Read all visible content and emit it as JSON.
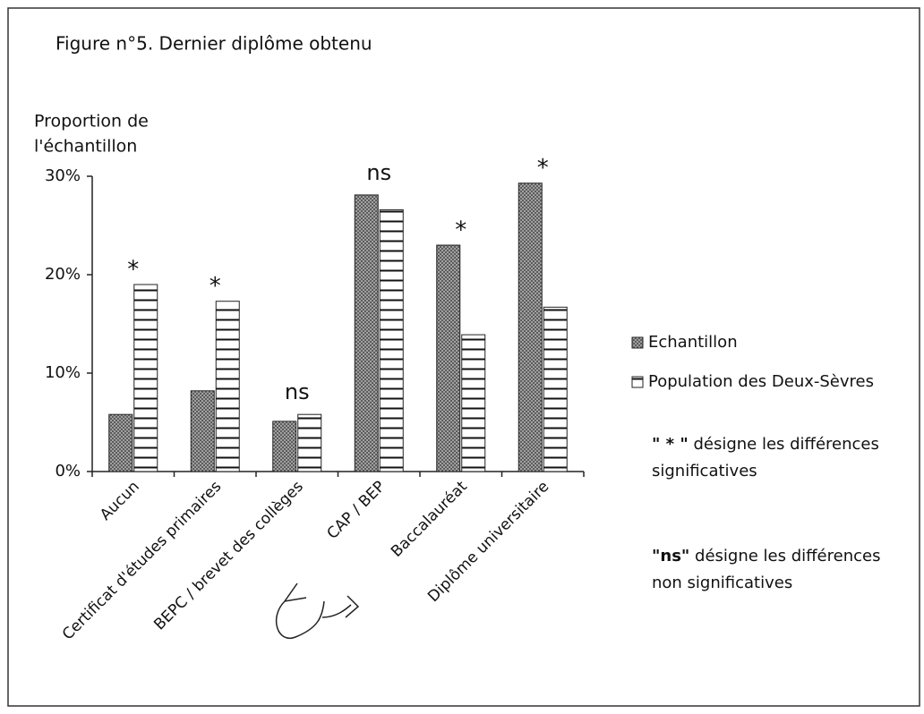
{
  "chart_data": {
    "type": "bar",
    "title": "Figure  n°5. Dernier diplôme obtenu",
    "y_label_lines": [
      "Proportion de",
      "l'échantillon"
    ],
    "categories": [
      "Aucun",
      "Certificat d'études primaires",
      "BEPC / brevet des collèges",
      "CAP / BEP",
      "Baccalauréat",
      "Diplôme universitaire"
    ],
    "series": [
      {
        "name": "Echantillon",
        "color": "#555555",
        "values": [
          5.8,
          8.2,
          5.1,
          28.1,
          23,
          29.3
        ]
      },
      {
        "name": "Population des Deux-Sèvres",
        "color": "#111111",
        "values": [
          19,
          17.3,
          5.8,
          26.6,
          13.9,
          16.7
        ]
      }
    ],
    "annotations": [
      "*",
      "*",
      "ns",
      "ns",
      "*",
      "*"
    ],
    "ylim": [
      0,
      30
    ],
    "yticks": [
      {
        "value": 0,
        "label": "0%"
      },
      {
        "value": 10,
        "label": "10%"
      },
      {
        "value": 20,
        "label": "20%"
      },
      {
        "value": 30,
        "label": "30%"
      }
    ],
    "legend": "right",
    "notes": [
      {
        "key": "\" * \"",
        "lines": [
          "désigne les différences",
          "significatives"
        ]
      },
      {
        "key": "\"ns\"",
        "lines": [
          "désigne les différences",
          "non significatives"
        ]
      }
    ]
  }
}
